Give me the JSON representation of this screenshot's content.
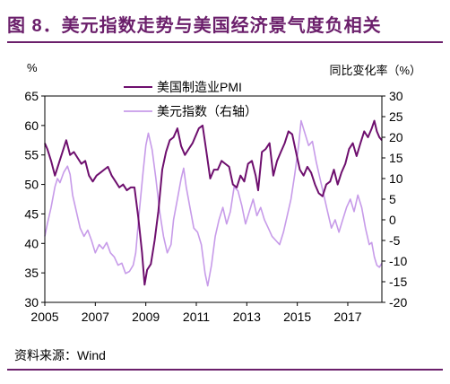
{
  "figure": {
    "title": "图 8．美元指数走势与美国经济景气度负相关",
    "source": "资料来源：Wind",
    "left_unit": "%",
    "right_unit": "同比变化率（%）"
  },
  "colors": {
    "title": "#6b1f6b",
    "pmi": "#6e0f6e",
    "dxy": "#c79be9",
    "frame": "#000000"
  },
  "chart_data": {
    "type": "line",
    "x_ticks": [
      "2005",
      "2007",
      "2009",
      "2011",
      "2013",
      "2015",
      "2017"
    ],
    "x_range": [
      2005,
      2018.35
    ],
    "y_left": {
      "ticks": [
        "65",
        "60",
        "55",
        "50",
        "45",
        "40",
        "35",
        "30"
      ],
      "range": [
        30,
        65
      ]
    },
    "y_right": {
      "ticks": [
        "30",
        "25",
        "20",
        "15",
        "10",
        "5",
        "0",
        "-5",
        "-10",
        "-15",
        "-20"
      ],
      "range": [
        -20,
        30
      ]
    },
    "grid": false,
    "legend_position": "top-center",
    "series": [
      {
        "name": "美国制造业PMI",
        "axis": "left",
        "points": [
          [
            2005.0,
            57.0
          ],
          [
            2005.1,
            56.0
          ],
          [
            2005.25,
            54.0
          ],
          [
            2005.4,
            51.5
          ],
          [
            2005.55,
            53.5
          ],
          [
            2005.7,
            55.5
          ],
          [
            2005.85,
            57.5
          ],
          [
            2006.0,
            55.0
          ],
          [
            2006.15,
            55.5
          ],
          [
            2006.3,
            54.5
          ],
          [
            2006.45,
            53.5
          ],
          [
            2006.6,
            54.0
          ],
          [
            2006.75,
            51.5
          ],
          [
            2006.9,
            50.5
          ],
          [
            2007.05,
            51.5
          ],
          [
            2007.2,
            52.0
          ],
          [
            2007.35,
            52.5
          ],
          [
            2007.5,
            53.0
          ],
          [
            2007.65,
            51.5
          ],
          [
            2007.8,
            50.5
          ],
          [
            2007.95,
            49.5
          ],
          [
            2008.1,
            50.0
          ],
          [
            2008.25,
            49.0
          ],
          [
            2008.4,
            49.5
          ],
          [
            2008.55,
            49.5
          ],
          [
            2008.7,
            44.5
          ],
          [
            2008.85,
            38.5
          ],
          [
            2008.95,
            33.0
          ],
          [
            2009.05,
            35.5
          ],
          [
            2009.2,
            36.5
          ],
          [
            2009.35,
            40.5
          ],
          [
            2009.5,
            45.5
          ],
          [
            2009.65,
            52.5
          ],
          [
            2009.8,
            55.5
          ],
          [
            2009.95,
            57.5
          ],
          [
            2010.1,
            58.0
          ],
          [
            2010.25,
            59.5
          ],
          [
            2010.4,
            56.5
          ],
          [
            2010.55,
            55.0
          ],
          [
            2010.7,
            56.0
          ],
          [
            2010.85,
            57.0
          ],
          [
            2011.0,
            58.5
          ],
          [
            2011.1,
            59.5
          ],
          [
            2011.25,
            60.0
          ],
          [
            2011.4,
            55.5
          ],
          [
            2011.55,
            51.0
          ],
          [
            2011.7,
            52.5
          ],
          [
            2011.85,
            52.5
          ],
          [
            2012.0,
            54.0
          ],
          [
            2012.15,
            53.5
          ],
          [
            2012.3,
            53.0
          ],
          [
            2012.45,
            50.0
          ],
          [
            2012.6,
            49.5
          ],
          [
            2012.75,
            51.5
          ],
          [
            2012.9,
            50.5
          ],
          [
            2013.05,
            53.5
          ],
          [
            2013.2,
            54.0
          ],
          [
            2013.35,
            51.5
          ],
          [
            2013.45,
            49.0
          ],
          [
            2013.6,
            55.5
          ],
          [
            2013.75,
            56.0
          ],
          [
            2013.9,
            57.0
          ],
          [
            2014.05,
            51.5
          ],
          [
            2014.2,
            54.0
          ],
          [
            2014.35,
            55.5
          ],
          [
            2014.5,
            57.0
          ],
          [
            2014.65,
            59.0
          ],
          [
            2014.8,
            58.5
          ],
          [
            2014.95,
            55.5
          ],
          [
            2015.1,
            52.5
          ],
          [
            2015.25,
            51.5
          ],
          [
            2015.4,
            53.0
          ],
          [
            2015.55,
            52.0
          ],
          [
            2015.7,
            50.0
          ],
          [
            2015.85,
            48.5
          ],
          [
            2016.0,
            48.0
          ],
          [
            2016.15,
            50.0
          ],
          [
            2016.3,
            50.5
          ],
          [
            2016.45,
            52.5
          ],
          [
            2016.6,
            50.0
          ],
          [
            2016.75,
            52.0
          ],
          [
            2016.9,
            53.5
          ],
          [
            2017.05,
            56.0
          ],
          [
            2017.2,
            57.0
          ],
          [
            2017.35,
            54.8
          ],
          [
            2017.5,
            57.0
          ],
          [
            2017.65,
            59.0
          ],
          [
            2017.8,
            58.0
          ],
          [
            2017.95,
            59.5
          ],
          [
            2018.05,
            60.8
          ],
          [
            2018.15,
            59.0
          ],
          [
            2018.25,
            58.0
          ],
          [
            2018.35,
            57.5
          ]
        ]
      },
      {
        "name": "美元指数（右轴）",
        "axis": "right",
        "points": [
          [
            2005.0,
            -4.0
          ],
          [
            2005.1,
            -1.0
          ],
          [
            2005.25,
            3.0
          ],
          [
            2005.4,
            8.0
          ],
          [
            2005.5,
            10.0
          ],
          [
            2005.6,
            9.0
          ],
          [
            2005.75,
            11.5
          ],
          [
            2005.9,
            13.0
          ],
          [
            2006.0,
            11.0
          ],
          [
            2006.1,
            6.0
          ],
          [
            2006.25,
            2.0
          ],
          [
            2006.4,
            -2.0
          ],
          [
            2006.55,
            -4.0
          ],
          [
            2006.7,
            -2.5
          ],
          [
            2006.85,
            -5.0
          ],
          [
            2007.0,
            -8.0
          ],
          [
            2007.15,
            -6.0
          ],
          [
            2007.3,
            -7.0
          ],
          [
            2007.45,
            -5.5
          ],
          [
            2007.6,
            -8.0
          ],
          [
            2007.75,
            -9.0
          ],
          [
            2007.9,
            -11.0
          ],
          [
            2008.05,
            -10.5
          ],
          [
            2008.2,
            -13.0
          ],
          [
            2008.35,
            -12.5
          ],
          [
            2008.5,
            -11.0
          ],
          [
            2008.6,
            -8.0
          ],
          [
            2008.75,
            2.5
          ],
          [
            2008.9,
            12.0
          ],
          [
            2009.0,
            18.0
          ],
          [
            2009.1,
            21.0
          ],
          [
            2009.25,
            17.0
          ],
          [
            2009.4,
            10.0
          ],
          [
            2009.55,
            2.0
          ],
          [
            2009.7,
            -4.0
          ],
          [
            2009.85,
            -8.0
          ],
          [
            2010.0,
            -6.0
          ],
          [
            2010.1,
            0.0
          ],
          [
            2010.25,
            5.0
          ],
          [
            2010.4,
            10.0
          ],
          [
            2010.5,
            12.5
          ],
          [
            2010.6,
            8.0
          ],
          [
            2010.75,
            3.0
          ],
          [
            2010.9,
            -2.0
          ],
          [
            2011.05,
            -3.0
          ],
          [
            2011.2,
            -6.0
          ],
          [
            2011.35,
            -13.0
          ],
          [
            2011.45,
            -16.0
          ],
          [
            2011.6,
            -11.0
          ],
          [
            2011.75,
            -4.0
          ],
          [
            2011.9,
            0.0
          ],
          [
            2012.05,
            3.0
          ],
          [
            2012.2,
            -1.0
          ],
          [
            2012.35,
            2.0
          ],
          [
            2012.5,
            8.0
          ],
          [
            2012.65,
            7.0
          ],
          [
            2012.8,
            3.5
          ],
          [
            2012.95,
            -1.0
          ],
          [
            2013.1,
            2.0
          ],
          [
            2013.25,
            5.0
          ],
          [
            2013.4,
            1.0
          ],
          [
            2013.55,
            3.0
          ],
          [
            2013.7,
            0.0
          ],
          [
            2013.85,
            -2.0
          ],
          [
            2014.0,
            -4.0
          ],
          [
            2014.15,
            -5.0
          ],
          [
            2014.3,
            -6.0
          ],
          [
            2014.45,
            -3.0
          ],
          [
            2014.6,
            1.0
          ],
          [
            2014.75,
            5.0
          ],
          [
            2014.9,
            11.0
          ],
          [
            2015.05,
            18.0
          ],
          [
            2015.15,
            24.0
          ],
          [
            2015.3,
            21.0
          ],
          [
            2015.45,
            18.0
          ],
          [
            2015.6,
            19.0
          ],
          [
            2015.75,
            14.0
          ],
          [
            2015.9,
            10.0
          ],
          [
            2016.05,
            6.0
          ],
          [
            2016.2,
            2.0
          ],
          [
            2016.35,
            -2.0
          ],
          [
            2016.5,
            0.0
          ],
          [
            2016.65,
            -3.0
          ],
          [
            2016.8,
            0.0
          ],
          [
            2016.95,
            3.0
          ],
          [
            2017.1,
            5.0
          ],
          [
            2017.25,
            2.0
          ],
          [
            2017.4,
            6.0
          ],
          [
            2017.55,
            3.0
          ],
          [
            2017.7,
            -2.0
          ],
          [
            2017.85,
            -6.0
          ],
          [
            2017.95,
            -5.5
          ],
          [
            2018.05,
            -9.0
          ],
          [
            2018.15,
            -11.0
          ],
          [
            2018.25,
            -11.5
          ],
          [
            2018.35,
            -10.5
          ]
        ]
      }
    ]
  }
}
